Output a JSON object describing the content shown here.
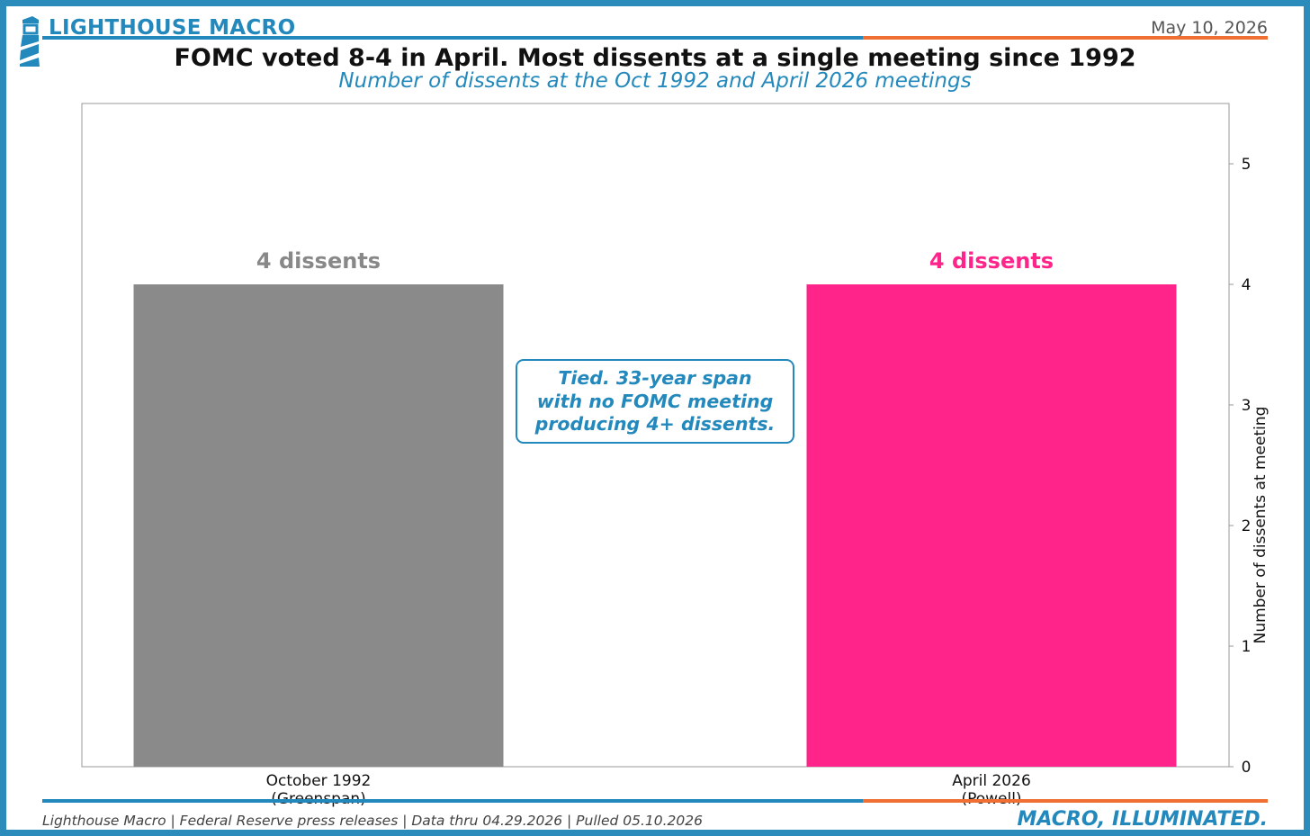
{
  "header": {
    "brand": "LIGHTHOUSE MACRO",
    "date": "May 10, 2026"
  },
  "colors": {
    "brand_blue": "#2389bc",
    "accent_orange": "#f07033",
    "frame_blue": "#2b8bbb"
  },
  "logo_icon": "lighthouse-icon",
  "chart_data": {
    "type": "bar",
    "title": "FOMC voted 8-4 in April. Most dissents at a single meeting since 1992",
    "subtitle": "Number of dissents at the Oct 1992 and April 2026 meetings",
    "categories": [
      [
        "October 1992",
        "(Greenspan)"
      ],
      [
        "April 2026",
        "(Powell)"
      ]
    ],
    "values": [
      4,
      4
    ],
    "bar_colors": [
      "#8a8a8a",
      "#ff2489"
    ],
    "data_labels": [
      "4 dissents",
      "4 dissents"
    ],
    "xlabel": "",
    "ylabel": "Number of dissents at meeting",
    "ylim": [
      0,
      5.5
    ],
    "yticks": [
      0,
      1,
      2,
      3,
      4,
      5
    ],
    "y_axis_side": "right",
    "grid": false,
    "annotation": [
      "Tied. 33-year span",
      "with no FOMC meeting",
      "producing 4+ dissents."
    ]
  },
  "footer": {
    "source": "Lighthouse Macro | Federal Reserve press releases | Data thru 04.29.2026 | Pulled 05.10.2026",
    "tagline": "MACRO, ILLUMINATED."
  }
}
